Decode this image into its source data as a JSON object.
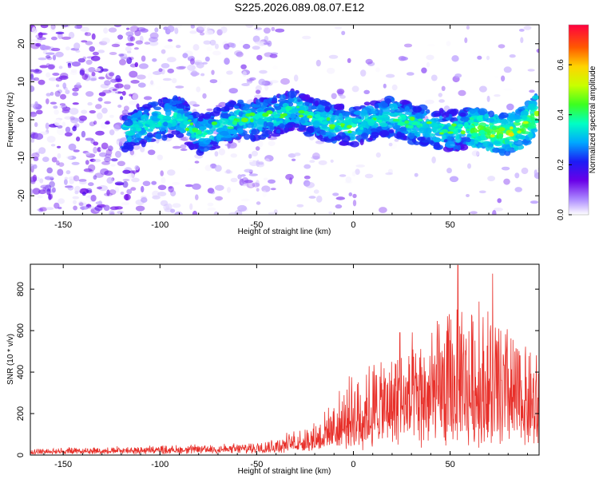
{
  "page": {
    "title": "S225.2026.089.08.07.E12"
  },
  "chart_data": [
    {
      "type": "heatmap",
      "name": "spectrogram",
      "xlabel": "Height of straight line (km)",
      "ylabel": "Frequency (Hz)",
      "xlim": [
        -167,
        96
      ],
      "ylim": [
        -25,
        25
      ],
      "xticks": [
        -150,
        -100,
        -50,
        0,
        50
      ],
      "yticks": [
        -20,
        -10,
        0,
        10,
        20
      ],
      "colorbar": {
        "label": "Normalized spectral amplitude",
        "range": [
          0,
          0.76
        ],
        "ticks": [
          0.0,
          0.2,
          0.4,
          0.6
        ]
      },
      "ridge": {
        "description_points": [
          {
            "x": -115,
            "y": -2.5
          },
          {
            "x": -100,
            "y": 0
          },
          {
            "x": -90,
            "y": 1
          },
          {
            "x": -80,
            "y": -4
          },
          {
            "x": -70,
            "y": -2
          },
          {
            "x": -60,
            "y": 0
          },
          {
            "x": -50,
            "y": 0
          },
          {
            "x": -40,
            "y": 1
          },
          {
            "x": -30,
            "y": 3
          },
          {
            "x": -20,
            "y": 0
          },
          {
            "x": -10,
            "y": -1
          },
          {
            "x": 0,
            "y": -2
          },
          {
            "x": 10,
            "y": 0
          },
          {
            "x": 20,
            "y": 1
          },
          {
            "x": 30,
            "y": -1
          },
          {
            "x": 40,
            "y": -2
          },
          {
            "x": 50,
            "y": -3
          },
          {
            "x": 60,
            "y": -2
          },
          {
            "x": 70,
            "y": -3
          },
          {
            "x": 80,
            "y": -4
          },
          {
            "x": 90,
            "y": -1
          },
          {
            "x": 95,
            "y": 2
          }
        ]
      }
    },
    {
      "type": "line",
      "name": "snr",
      "xlabel": "Height of straight line (km)",
      "ylabel": "SNR (10 * v/v)",
      "xlim": [
        -167,
        96
      ],
      "ylim": [
        0,
        920
      ],
      "xticks": [
        -150,
        -100,
        -50,
        0,
        50
      ],
      "yticks": [
        0,
        200,
        400,
        600,
        800
      ],
      "color": "#e8302a",
      "envelope": [
        {
          "x": -167,
          "base": 15,
          "amp": 20
        },
        {
          "x": -100,
          "base": 20,
          "amp": 30
        },
        {
          "x": -60,
          "base": 25,
          "amp": 35
        },
        {
          "x": -40,
          "base": 35,
          "amp": 55
        },
        {
          "x": -20,
          "base": 60,
          "amp": 110
        },
        {
          "x": -10,
          "base": 80,
          "amp": 200
        },
        {
          "x": 0,
          "base": 100,
          "amp": 330
        },
        {
          "x": 20,
          "base": 130,
          "amp": 420
        },
        {
          "x": 40,
          "base": 150,
          "amp": 500
        },
        {
          "x": 55,
          "base": 160,
          "amp": 620
        },
        {
          "x": 75,
          "base": 150,
          "amp": 560
        },
        {
          "x": 96,
          "base": 140,
          "amp": 360
        }
      ],
      "peaks": [
        {
          "x": 54,
          "y": 915
        },
        {
          "x": 72,
          "y": 875
        },
        {
          "x": 24,
          "y": 590
        },
        {
          "x": 56,
          "y": 690
        },
        {
          "x": 65,
          "y": 740
        }
      ]
    }
  ]
}
